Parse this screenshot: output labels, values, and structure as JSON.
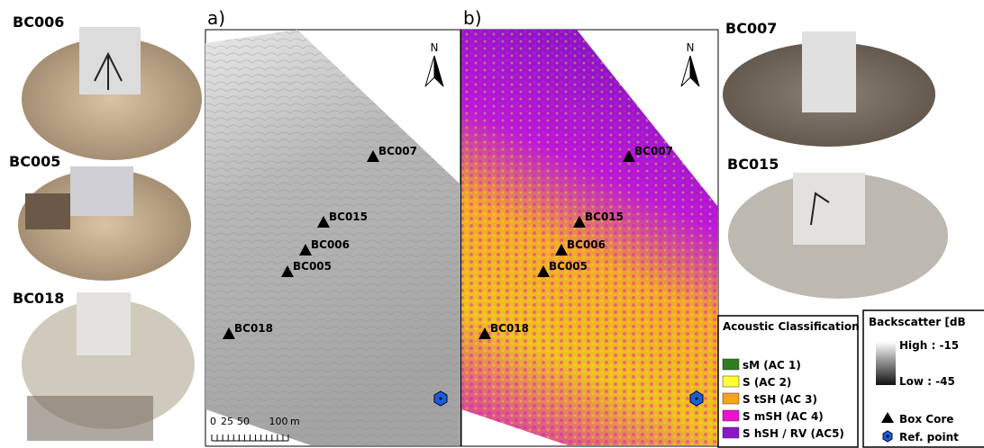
{
  "photos_left": [
    {
      "label": "BC006"
    },
    {
      "label": "BC005"
    },
    {
      "label": "BC018"
    }
  ],
  "photos_right": [
    {
      "label": "BC007"
    },
    {
      "label": "BC015"
    }
  ],
  "maps": [
    {
      "label": "a)",
      "north": "N",
      "stations": [
        "BC007",
        "BC015",
        "BC006",
        "BC005",
        "BC018"
      ]
    },
    {
      "label": "b)",
      "north": "N",
      "stations": [
        "BC007",
        "BC015",
        "BC006",
        "BC005",
        "BC018"
      ]
    }
  ],
  "scale_bar": {
    "ticks": [
      0,
      25,
      50,
      100
    ],
    "unit": "m"
  },
  "classification_legend": {
    "title": "Acoustic Classification",
    "items": [
      {
        "label": "sM (AC 1)",
        "color": "#2e7d1e"
      },
      {
        "label": "S (AC 2)",
        "color": "#ffff33"
      },
      {
        "label": "S tSH (AC 3)",
        "color": "#f7a21b"
      },
      {
        "label": "S mSH (AC 4)",
        "color": "#ee11cc"
      },
      {
        "label": "S hSH / RV (AC5)",
        "color": "#8a16c8"
      }
    ]
  },
  "backscatter_legend": {
    "title": "Backscatter [dB",
    "high": "High : -15",
    "low": "Low : -45",
    "box_core": "Box Core",
    "ref_point": "Ref. point"
  }
}
